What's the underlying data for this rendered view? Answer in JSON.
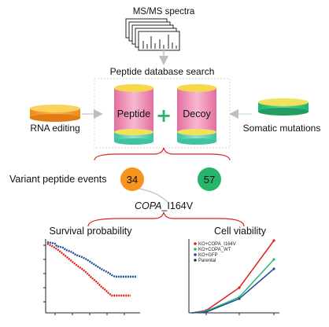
{
  "top": {
    "spectra_label": "MS/MS spectra",
    "search_label": "Peptide database search"
  },
  "stages": {
    "left_label": "RNA editing",
    "right_label": "Somatic mutations",
    "peptide_label": "Peptide",
    "decoy_label": "Decoy",
    "plus_symbol": "+"
  },
  "variant": {
    "label": "Variant peptide events",
    "left_count": "34",
    "right_count": "57",
    "gene_italic": "COPA",
    "gene_suffix": "_I164V"
  },
  "panels": {
    "survival_title": "Survival probability",
    "viability_title": "Cell viability",
    "legend": [
      {
        "label": "KO+COPA_I164V",
        "color": "#e0201b"
      },
      {
        "label": "KO+COPA_WT",
        "color": "#2bb673"
      },
      {
        "label": "KO+GFP",
        "color": "#1f4e9c"
      },
      {
        "label": "Parental",
        "color": "#333333"
      }
    ]
  },
  "colors": {
    "accent_red": "#e0201b",
    "orange": "#f4a020",
    "green": "#3cc58a",
    "pink": "#f2a7c3",
    "yellow": "#f7d84a",
    "teal": "#5fd3b8",
    "badge_orange": "#f7941d",
    "badge_green": "#27b56b"
  }
}
